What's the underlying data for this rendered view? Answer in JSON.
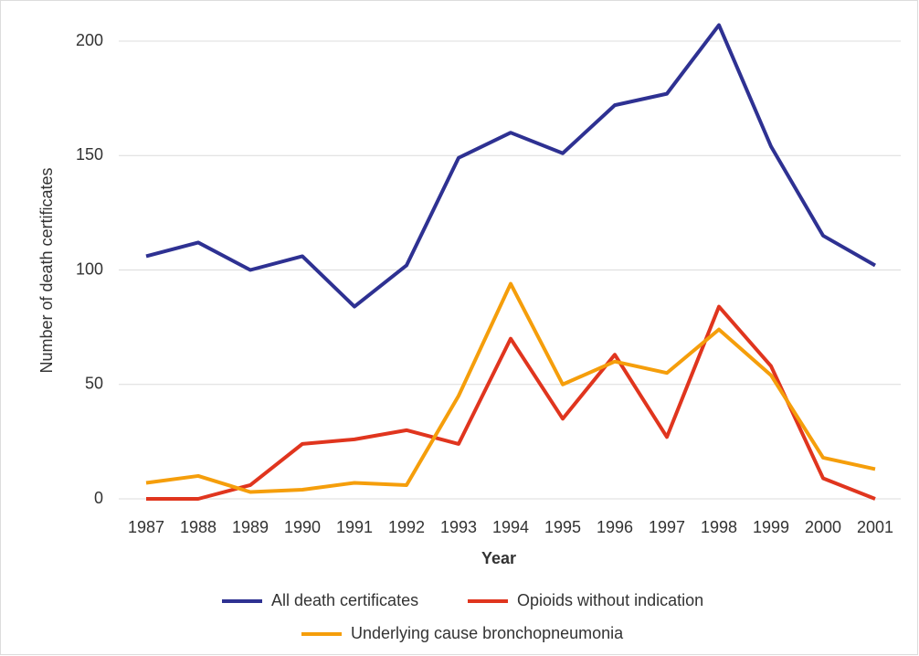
{
  "chart_data": {
    "type": "line",
    "x_label": "Year",
    "y_label": "Number of death certificates",
    "categories": [
      "1987",
      "1988",
      "1989",
      "1990",
      "1991",
      "1992",
      "1993",
      "1994",
      "1995",
      "1996",
      "1997",
      "1998",
      "1999",
      "2000",
      "2001"
    ],
    "series": [
      {
        "name": "All death certificates",
        "color": "#2e3192",
        "values": [
          106,
          112,
          100,
          106,
          84,
          102,
          149,
          160,
          151,
          172,
          177,
          207,
          154,
          115,
          102
        ]
      },
      {
        "name": "Opioids without indication",
        "color": "#e0351e",
        "values": [
          0,
          0,
          6,
          24,
          26,
          30,
          24,
          70,
          35,
          63,
          27,
          84,
          58,
          9,
          0
        ]
      },
      {
        "name": "Underlying cause bronchopneumonia",
        "color": "#f59e0b",
        "values": [
          7,
          10,
          3,
          4,
          7,
          6,
          45,
          94,
          50,
          60,
          55,
          74,
          54,
          18,
          13
        ]
      }
    ],
    "ylim": [
      0,
      200
    ],
    "yticks": [
      0,
      50,
      100,
      150,
      200
    ],
    "grid": true
  }
}
